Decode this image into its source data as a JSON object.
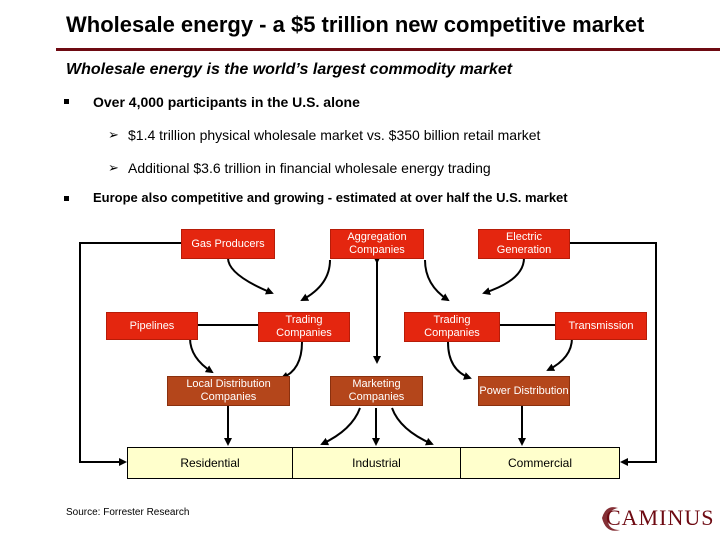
{
  "header": {
    "title": "Wholesale energy - a $5 trillion new competitive market",
    "subtitle": "Wholesale energy is the world’s largest commodity market"
  },
  "bullets": {
    "b1": "Over 4,000 participants in the U.S. alone",
    "b1_sub1": "$1.4 trillion physical wholesale market vs. $350 billion retail market",
    "b1_sub2": "Additional $3.6 trillion in financial wholesale energy trading",
    "b2": "Europe also competitive and growing - estimated at over half the U.S. market"
  },
  "diagram": {
    "gas_producers": "Gas Producers",
    "aggregation": "Aggregation Companies",
    "electric_generation": "Electric Generation",
    "pipelines": "Pipelines",
    "trading_left": "Trading Companies",
    "trading_right": "Trading Companies",
    "transmission": "Transmission",
    "ldc": "Local Distribution Companies",
    "marketing": "Marketing Companies",
    "power_distribution": "Power Distribution",
    "residential": "Residential",
    "industrial": "Industrial",
    "commercial": "Commercial"
  },
  "footer": {
    "source": "Source: Forrester Research",
    "logo": "CAMINUS"
  },
  "colors": {
    "accent": "#6e0a12",
    "box_red": "#e4260f",
    "box_brown": "#b4461b",
    "customer_bar": "#ffffcc"
  }
}
